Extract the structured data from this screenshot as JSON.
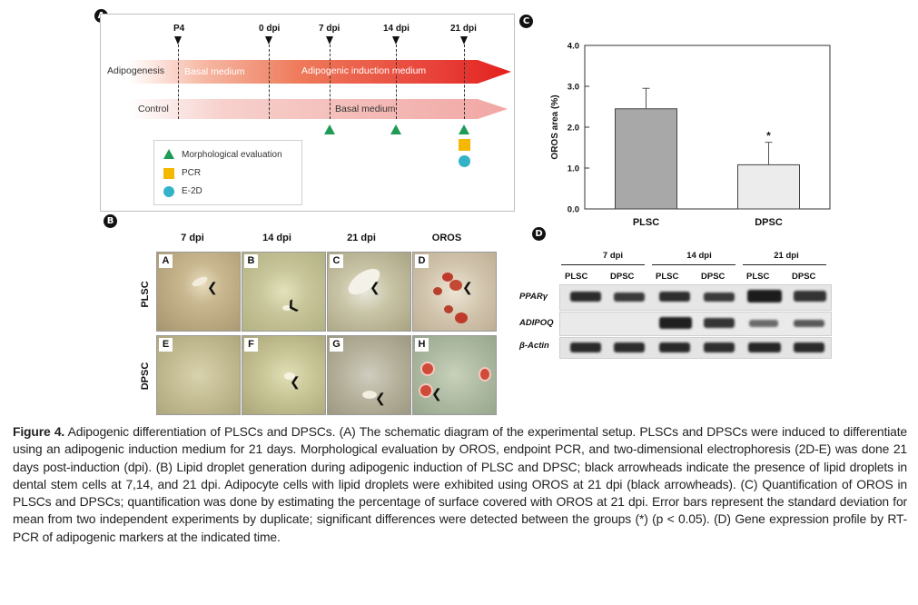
{
  "panel_a": {
    "letter": "A",
    "timepoints": [
      "P4",
      "0 dpi",
      "7 dpi",
      "14 dpi",
      "21 dpi"
    ],
    "rows": {
      "adipogenesis": "Adipogenesis",
      "control": "Control"
    },
    "bands": {
      "basal": "Basal medium",
      "induction": "Adipogenic induction medium",
      "control_basal": "Basal medium"
    },
    "legend": [
      {
        "symbol": "triangle-icon",
        "label": "Morphological evaluation",
        "color": "#1e9b55"
      },
      {
        "symbol": "square-icon",
        "label": "PCR",
        "color": "#f5b800"
      },
      {
        "symbol": "circle-icon",
        "label": "E-2D",
        "color": "#33b3c8"
      }
    ]
  },
  "panel_b": {
    "letter": "B",
    "columns": [
      "7 dpi",
      "14 dpi",
      "21 dpi",
      "OROS"
    ],
    "rows": [
      "PLSC",
      "DPSC"
    ],
    "tiles": [
      "A",
      "B",
      "C",
      "D",
      "E",
      "F",
      "G",
      "H"
    ]
  },
  "panel_c": {
    "letter": "C"
  },
  "chart_data": {
    "type": "bar",
    "categories": [
      "PLSC",
      "DPSC"
    ],
    "values": [
      2.45,
      1.08
    ],
    "errors": [
      0.5,
      0.55
    ],
    "annotations": [
      "",
      "*"
    ],
    "ylabel": "OROS area (%)",
    "ylim": [
      0,
      4.0
    ],
    "yticks": [
      "0.0",
      "1.0",
      "2.0",
      "3.0",
      "4.0"
    ],
    "colors": [
      "#a8a8a8",
      "#ececec"
    ],
    "grid": false
  },
  "panel_d": {
    "letter": "D",
    "timepoints": [
      "7 dpi",
      "14 dpi",
      "21 dpi"
    ],
    "lanes": [
      "PLSC",
      "DPSC",
      "PLSC",
      "DPSC",
      "PLSC",
      "DPSC"
    ],
    "genes": [
      "PPARγ",
      "ADIPOQ",
      "β-Actin"
    ]
  },
  "caption": {
    "label": "Figure 4.",
    "text": " Adipogenic differentiation of PLSCs and DPSCs. (A) The schematic diagram of the experimental setup. PLSCs and DPSCs were induced to differentiate using an adipogenic induction medium for 21 days. Morphological evaluation by OROS, endpoint PCR, and two-dimensional electrophoresis (2D-E) was done 21 days post-induction (dpi). (B) Lipid droplet generation during adipogenic induction of PLSC and DPSC; black arrowheads indicate the presence of lipid droplets in dental stem cells at 7,14, and 21 dpi. Adipocyte cells with lipid droplets were exhibited using OROS at 21 dpi (black arrowheads). (C) Quantification of OROS in PLSCs and DPSCs; quantification was done by estimating the percentage of surface covered with OROS at 21 dpi. Error bars represent the standard deviation for mean from two independent experiments by duplicate; significant differences were detected between the groups (*) (p < 0.05). (D) Gene expression profile by RT-PCR of adipogenic markers at the indicated time."
  }
}
